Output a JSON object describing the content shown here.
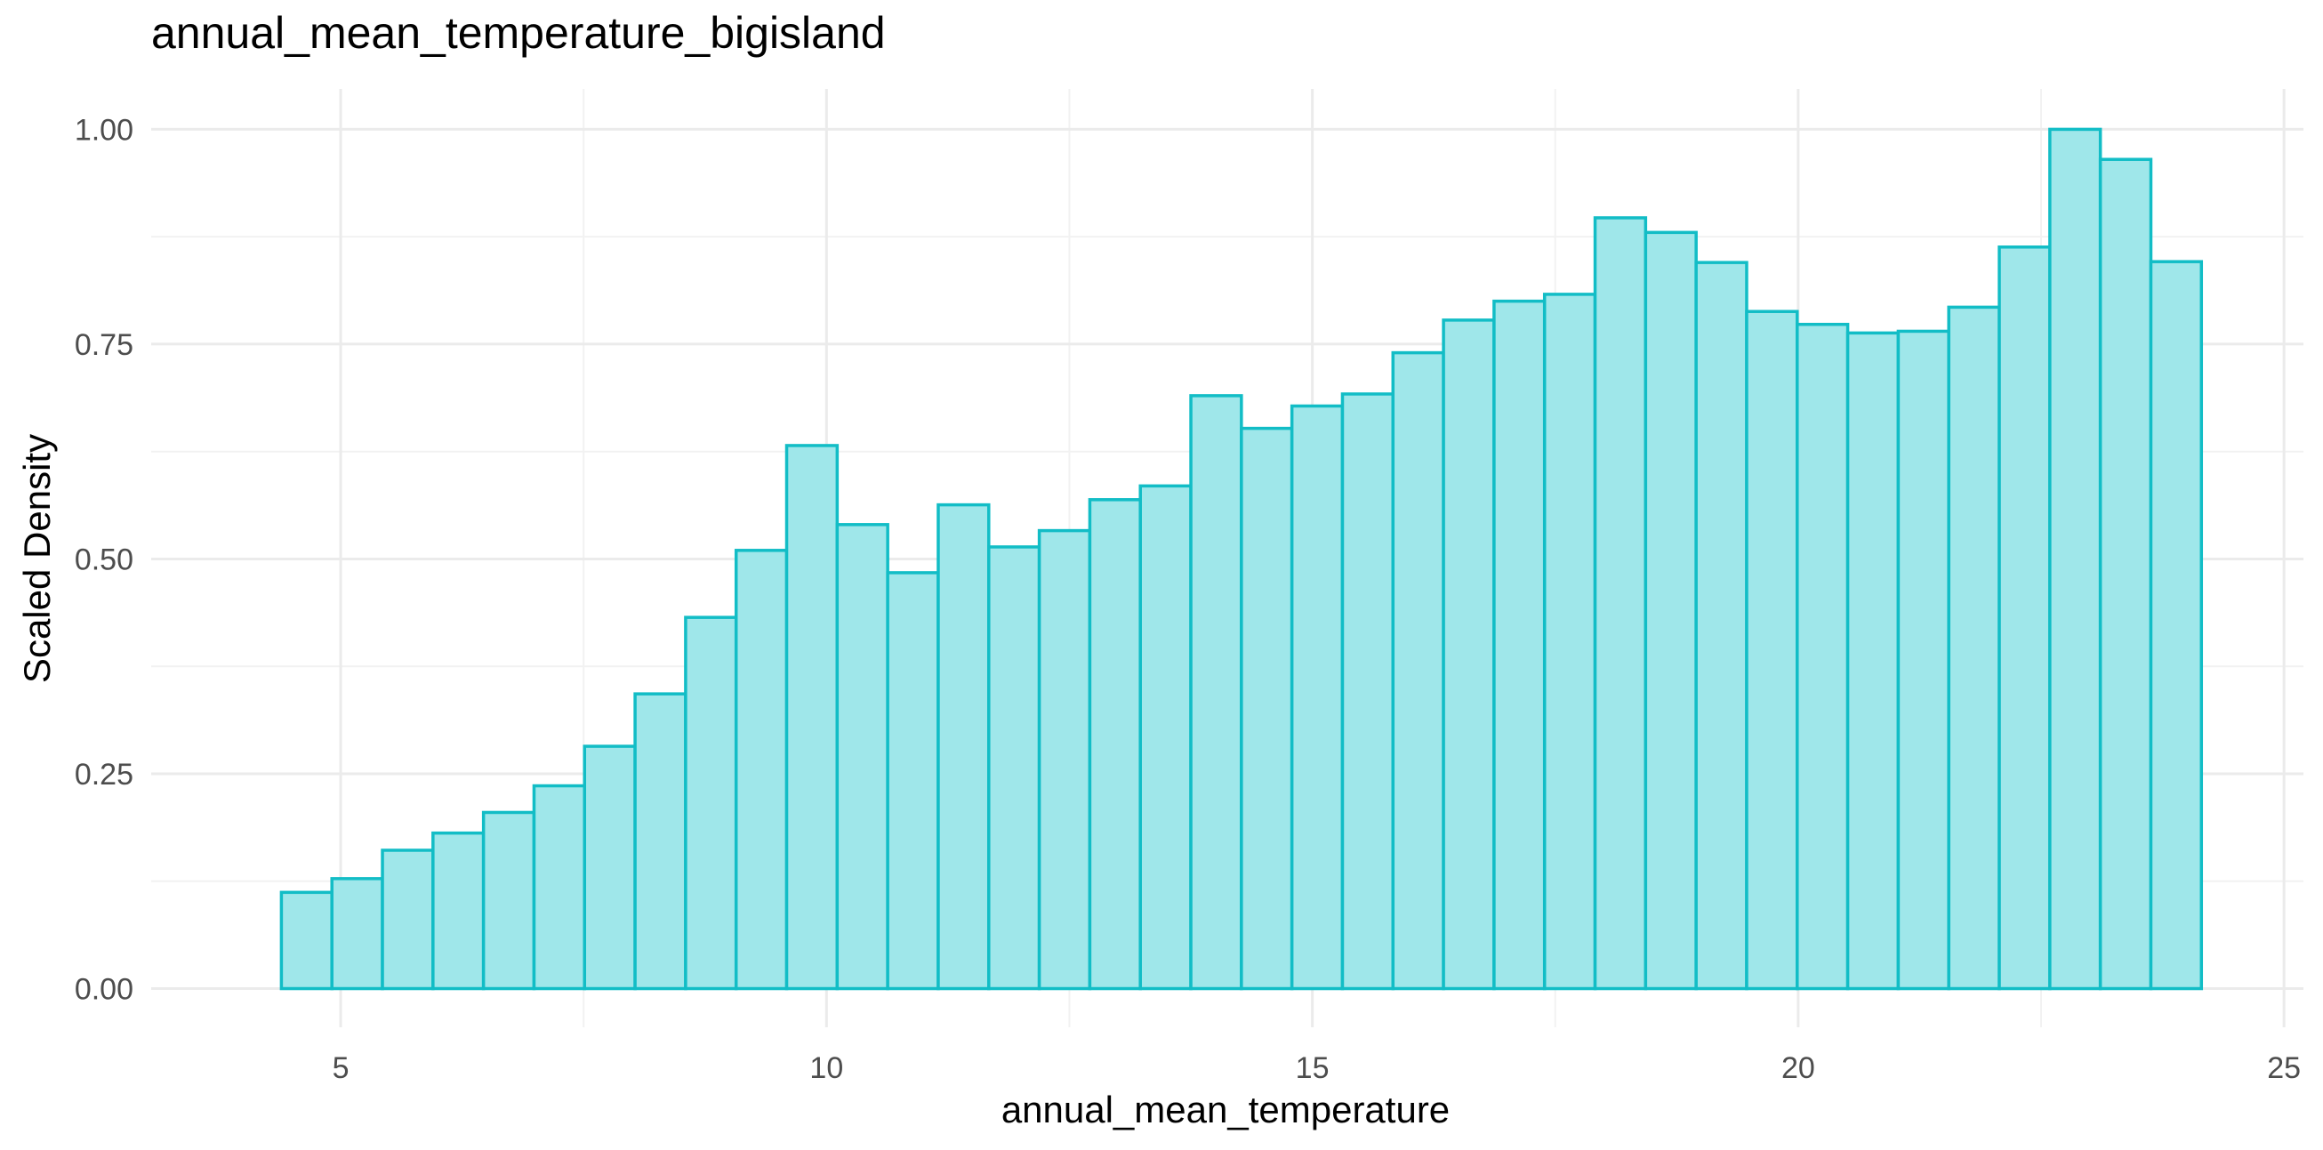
{
  "chart_data": {
    "type": "bar",
    "title": "annual_mean_temperature_bigisland",
    "xlabel": "annual_mean_temperature",
    "ylabel": "Scaled Density",
    "xlim": [
      3.05,
      25.2
    ],
    "ylim": [
      -0.045,
      1.047
    ],
    "x_ticks": [
      5,
      10,
      15,
      20,
      25
    ],
    "x_tick_labels": [
      "5",
      "10",
      "15",
      "20",
      "25"
    ],
    "y_ticks": [
      0,
      0.25,
      0.5,
      0.75,
      1
    ],
    "y_tick_labels": [
      "0.00",
      "0.25",
      "0.50",
      "0.75",
      "1.00"
    ],
    "grid": true,
    "legend": "none",
    "fill_color": "#9fe7ea",
    "outline_color": "#12bdc6",
    "bin_edges": [
      4.39,
      4.91,
      5.43,
      5.95,
      6.47,
      6.99,
      7.51,
      8.03,
      8.55,
      9.07,
      9.59,
      10.11,
      10.63,
      11.15,
      11.67,
      12.19,
      12.71,
      13.23,
      13.75,
      14.27,
      14.79,
      15.31,
      15.83,
      16.35,
      16.87,
      17.39,
      17.91,
      18.43,
      18.95,
      19.47,
      19.99,
      20.51,
      21.03,
      21.55,
      22.07,
      22.59,
      23.11,
      23.63,
      24.15
    ],
    "values": [
      0.112,
      0.128,
      0.161,
      0.181,
      0.205,
      0.236,
      0.282,
      0.343,
      0.432,
      0.51,
      0.632,
      0.54,
      0.484,
      0.563,
      0.514,
      0.533,
      0.569,
      0.585,
      0.69,
      0.652,
      0.678,
      0.692,
      0.74,
      0.778,
      0.8,
      0.808,
      0.897,
      0.88,
      0.845,
      0.788,
      0.773,
      0.763,
      0.765,
      0.793,
      0.863,
      1.0,
      0.965,
      0.846
    ]
  }
}
